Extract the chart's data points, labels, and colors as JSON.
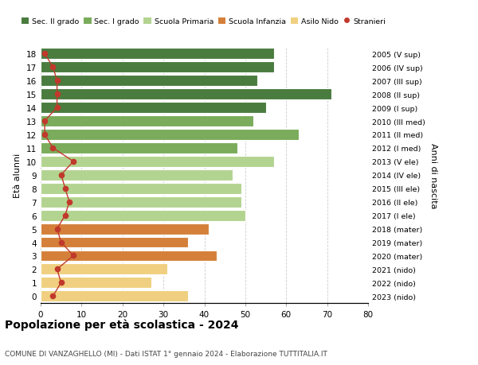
{
  "ages": [
    18,
    17,
    16,
    15,
    14,
    13,
    12,
    11,
    10,
    9,
    8,
    7,
    6,
    5,
    4,
    3,
    2,
    1,
    0
  ],
  "years": [
    "2005 (V sup)",
    "2006 (IV sup)",
    "2007 (III sup)",
    "2008 (II sup)",
    "2009 (I sup)",
    "2010 (III med)",
    "2011 (II med)",
    "2012 (I med)",
    "2013 (V ele)",
    "2014 (IV ele)",
    "2015 (III ele)",
    "2016 (II ele)",
    "2017 (I ele)",
    "2018 (mater)",
    "2019 (mater)",
    "2020 (mater)",
    "2021 (nido)",
    "2022 (nido)",
    "2023 (nido)"
  ],
  "bar_values": [
    57,
    57,
    53,
    71,
    55,
    52,
    63,
    48,
    57,
    47,
    49,
    49,
    50,
    41,
    36,
    43,
    31,
    27,
    36
  ],
  "stranieri_values": [
    1,
    3,
    4,
    4,
    4,
    1,
    1,
    3,
    8,
    5,
    6,
    7,
    6,
    4,
    5,
    8,
    4,
    5,
    3
  ],
  "bar_colors": [
    "#4a7c3f",
    "#4a7c3f",
    "#4a7c3f",
    "#4a7c3f",
    "#4a7c3f",
    "#7aac5b",
    "#7aac5b",
    "#7aac5b",
    "#b3d490",
    "#b3d490",
    "#b3d490",
    "#b3d490",
    "#b3d490",
    "#d4803a",
    "#d4803a",
    "#d4803a",
    "#f0d080",
    "#f0d080",
    "#f0d080"
  ],
  "legend_labels": [
    "Sec. II grado",
    "Sec. I grado",
    "Scuola Primaria",
    "Scuola Infanzia",
    "Asilo Nido",
    "Stranieri"
  ],
  "legend_colors": [
    "#4a7c3f",
    "#7aac5b",
    "#b3d490",
    "#d4803a",
    "#f0d080",
    "#c0392b"
  ],
  "stranieri_color": "#c0392b",
  "title": "Popolazione per età scolastica - 2024",
  "subtitle": "COMUNE DI VANZAGHELLO (MI) - Dati ISTAT 1° gennaio 2024 - Elaborazione TUTTITALIA.IT",
  "ylabel_left": "Età alunni",
  "ylabel_right": "Anni di nascita",
  "xlim": [
    0,
    80
  ],
  "background_color": "#ffffff",
  "grid_color": "#cccccc"
}
